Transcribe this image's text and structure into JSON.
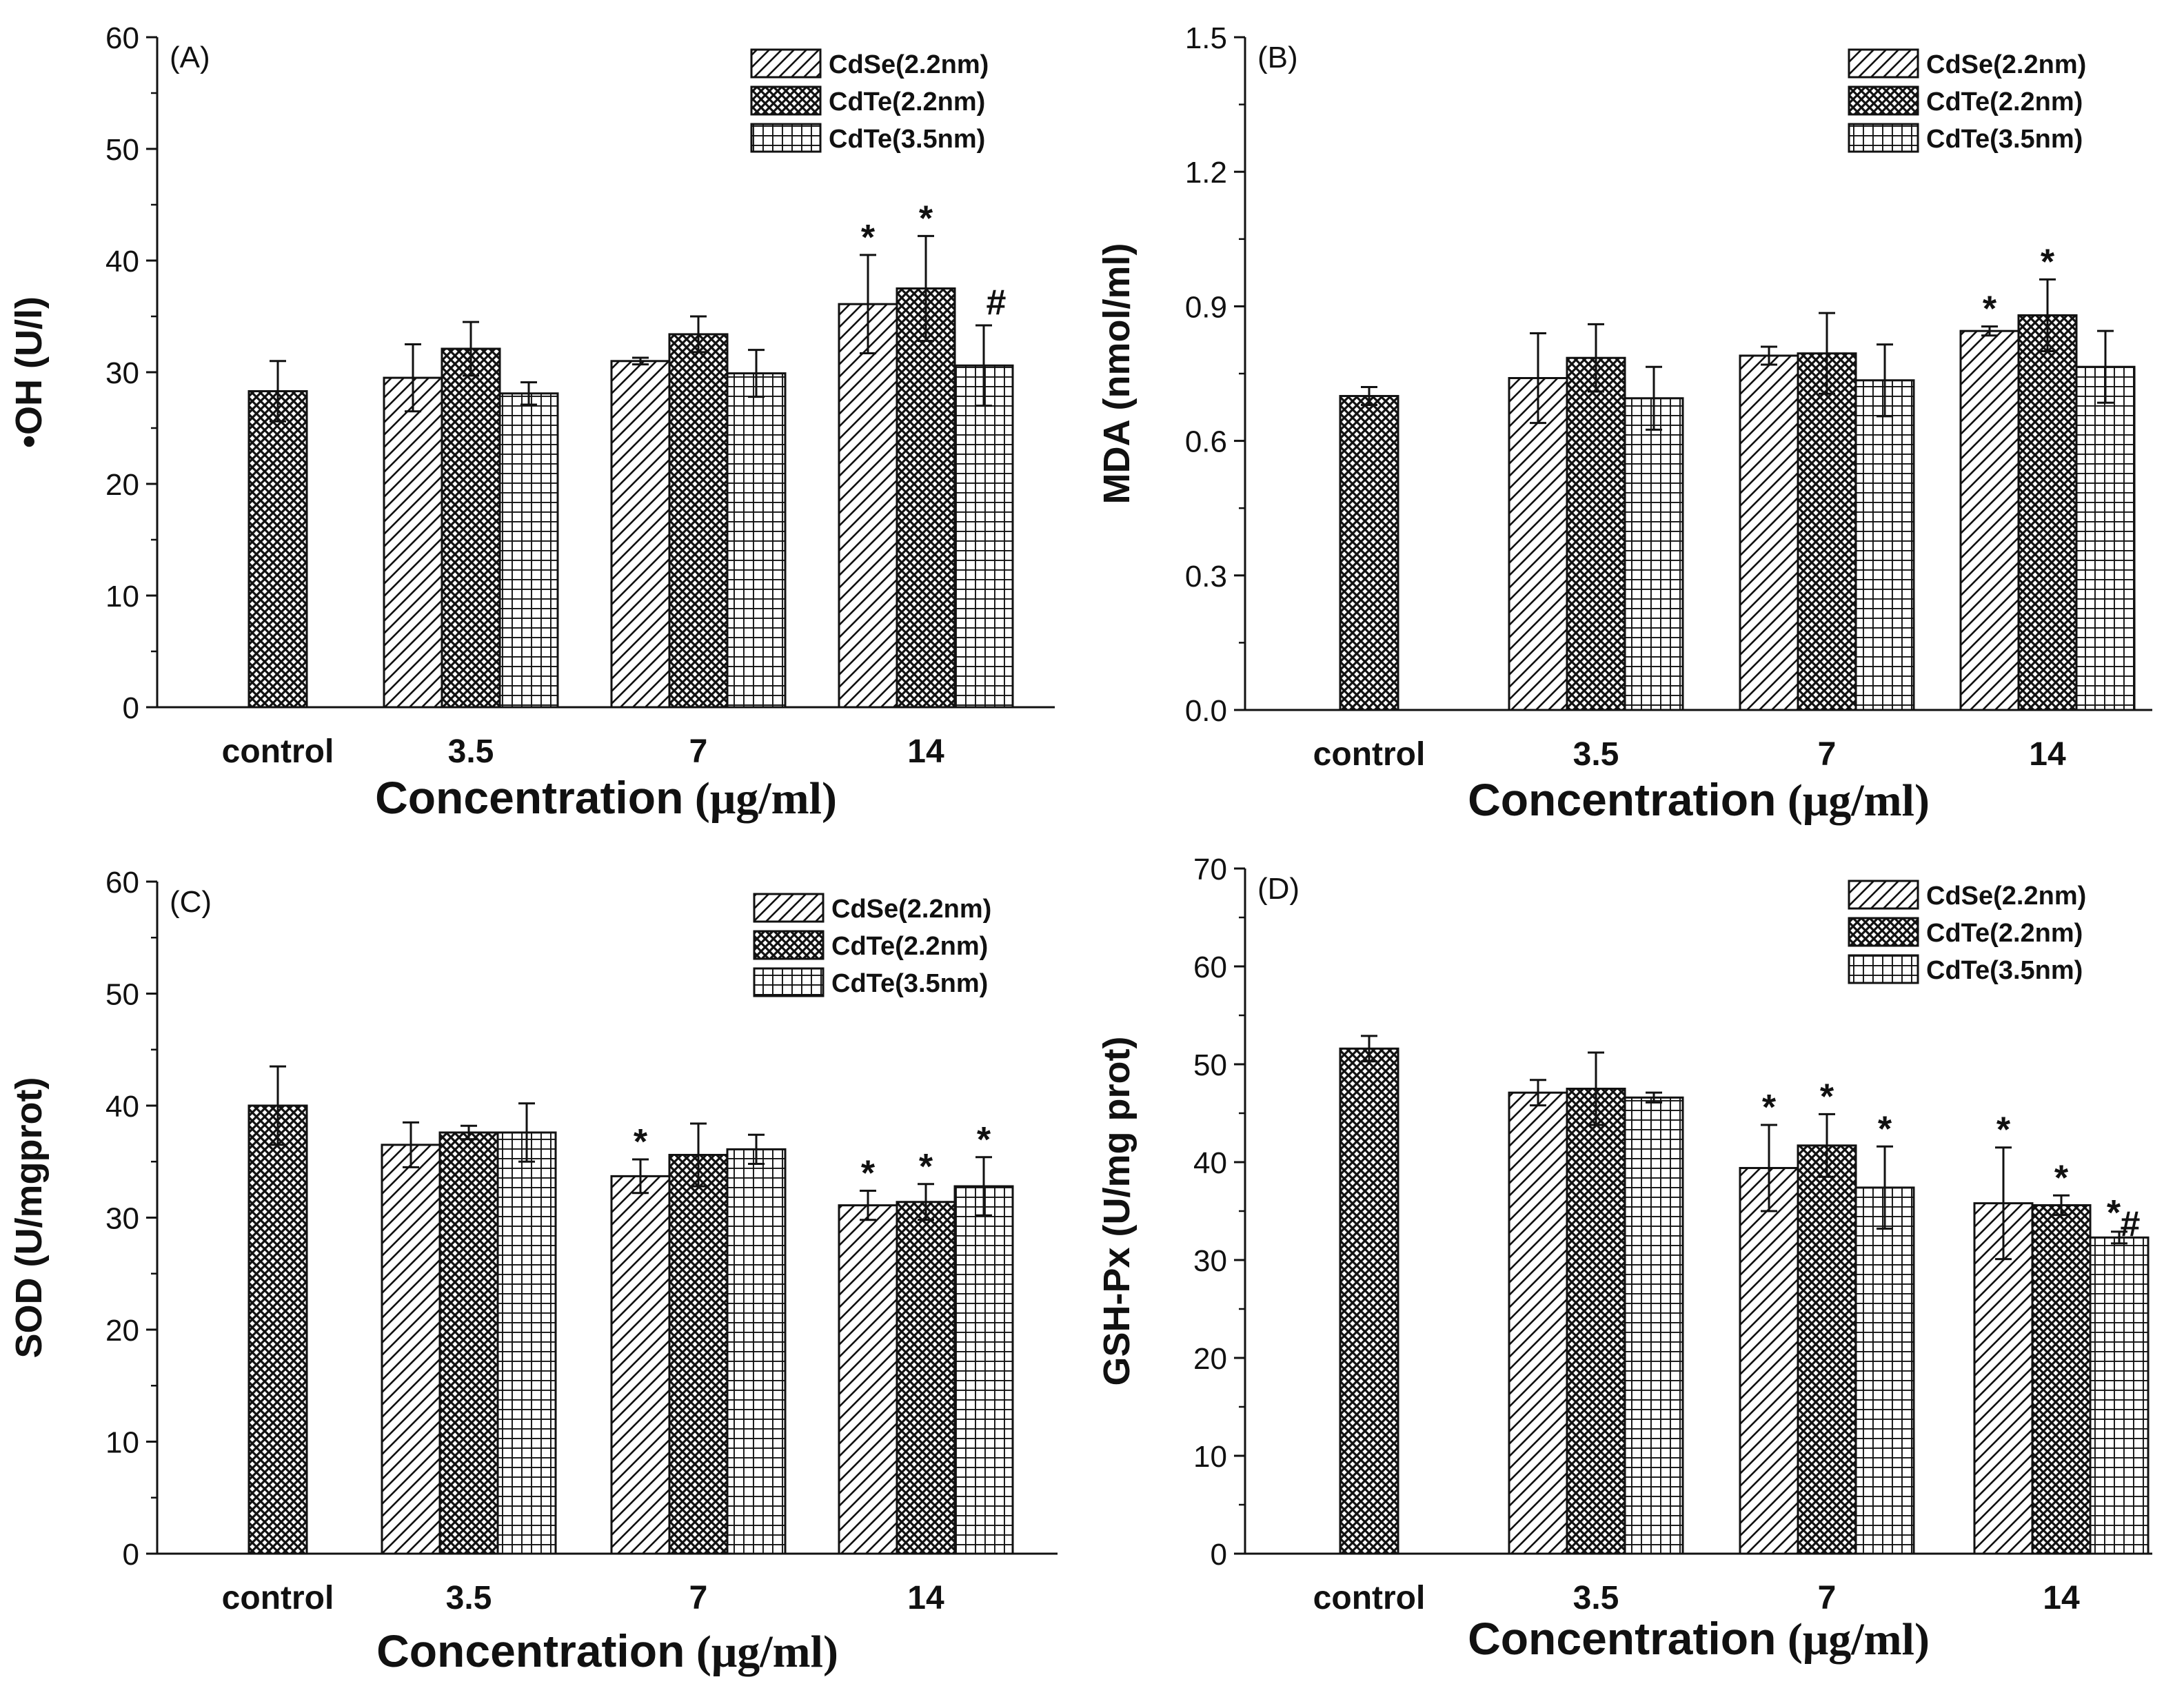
{
  "chart_data": [
    {
      "panel_label": "(A)",
      "type": "bar",
      "ylabel": "•OH (U/l)",
      "xlabel": "Concentration (μg/ml)",
      "ylim": [
        0,
        60
      ],
      "yticks": [
        "0",
        "10",
        "20",
        "30",
        "40",
        "50",
        "60"
      ],
      "control": {
        "label": "control",
        "value": 28.3,
        "error": 2.7
      },
      "categories": [
        "3.5",
        "7",
        "14"
      ],
      "series": [
        {
          "name": "CdSe(2.2nm)",
          "pattern": "hatch",
          "values": [
            29.5,
            31.0,
            36.1
          ],
          "errors": [
            3.0,
            0.3,
            4.4
          ],
          "marks": [
            "",
            "",
            "*"
          ]
        },
        {
          "name": "CdTe(2.2nm)",
          "pattern": "checker",
          "values": [
            32.1,
            33.4,
            37.5
          ],
          "errors": [
            2.4,
            1.6,
            4.7
          ],
          "marks": [
            "",
            "",
            "*"
          ]
        },
        {
          "name": "CdTe(3.5nm)",
          "pattern": "grid",
          "values": [
            28.1,
            29.9,
            30.6
          ],
          "errors": [
            1.0,
            2.1,
            3.6
          ],
          "marks": [
            "",
            "",
            "#"
          ]
        }
      ]
    },
    {
      "panel_label": "(B)",
      "type": "bar",
      "ylabel": "MDA (nmol/ml)",
      "xlabel": "Concentration (μg/ml)",
      "ylim": [
        0,
        1.5
      ],
      "yticks": [
        "0.0",
        "0.3",
        "0.6",
        "0.9",
        "1.2",
        "1.5"
      ],
      "control": {
        "label": "control",
        "value": 0.7,
        "error": 0.02
      },
      "categories": [
        "3.5",
        "7",
        "14"
      ],
      "series": [
        {
          "name": "CdSe(2.2nm)",
          "pattern": "hatch",
          "values": [
            0.74,
            0.79,
            0.845
          ],
          "errors": [
            0.1,
            0.02,
            0.01
          ],
          "marks": [
            "",
            "",
            "*"
          ]
        },
        {
          "name": "CdTe(2.2nm)",
          "pattern": "checker",
          "values": [
            0.785,
            0.795,
            0.88
          ],
          "errors": [
            0.075,
            0.09,
            0.08
          ],
          "marks": [
            "",
            "",
            "*"
          ]
        },
        {
          "name": "CdTe(3.5nm)",
          "pattern": "grid",
          "values": [
            0.695,
            0.735,
            0.765
          ],
          "errors": [
            0.07,
            0.08,
            0.08
          ],
          "marks": [
            "",
            "",
            ""
          ]
        }
      ]
    },
    {
      "panel_label": "(C)",
      "type": "bar",
      "ylabel": "SOD (U/mgprot)",
      "xlabel": "Concentration (μg/ml)",
      "ylim": [
        0,
        60
      ],
      "yticks": [
        "0",
        "10",
        "20",
        "30",
        "40",
        "50",
        "60"
      ],
      "control": {
        "label": "control",
        "value": 40.0,
        "error": 3.5
      },
      "categories": [
        "3.5",
        "7",
        "14"
      ],
      "series": [
        {
          "name": "CdSe(2.2nm)",
          "pattern": "hatch",
          "values": [
            36.5,
            33.7,
            31.1
          ],
          "errors": [
            2.0,
            1.5,
            1.3
          ],
          "marks": [
            "",
            "*",
            "*"
          ]
        },
        {
          "name": "CdTe(2.2nm)",
          "pattern": "checker",
          "values": [
            37.6,
            35.6,
            31.4
          ],
          "errors": [
            0.6,
            2.8,
            1.6
          ],
          "marks": [
            "",
            "",
            "*"
          ]
        },
        {
          "name": "CdTe(3.5nm)",
          "pattern": "grid",
          "values": [
            37.6,
            36.1,
            32.8
          ],
          "errors": [
            2.6,
            1.3,
            2.6
          ],
          "marks": [
            "",
            "",
            "*"
          ]
        }
      ]
    },
    {
      "panel_label": "(D)",
      "type": "bar",
      "ylabel": "GSH-Px (U/mg prot)",
      "xlabel": "Concentration (μg/ml)",
      "ylim": [
        0,
        70
      ],
      "yticks": [
        "0",
        "10",
        "20",
        "30",
        "40",
        "50",
        "60",
        "70"
      ],
      "control": {
        "label": "control",
        "value": 51.6,
        "error": 1.3
      },
      "categories": [
        "3.5",
        "7",
        "14"
      ],
      "series": [
        {
          "name": "CdSe(2.2nm)",
          "pattern": "hatch",
          "values": [
            47.1,
            39.4,
            35.8
          ],
          "errors": [
            1.3,
            4.4,
            5.7
          ],
          "marks": [
            "",
            "*",
            "*"
          ]
        },
        {
          "name": "CdTe(2.2nm)",
          "pattern": "checker",
          "values": [
            47.5,
            41.7,
            35.6
          ],
          "errors": [
            3.7,
            3.2,
            1.0
          ],
          "marks": [
            "",
            "*",
            "*"
          ]
        },
        {
          "name": "CdTe(3.5nm)",
          "pattern": "grid",
          "values": [
            46.6,
            37.4,
            32.3
          ],
          "errors": [
            0.5,
            4.2,
            0.6
          ],
          "marks": [
            "",
            "*",
            "*#"
          ]
        }
      ]
    }
  ]
}
